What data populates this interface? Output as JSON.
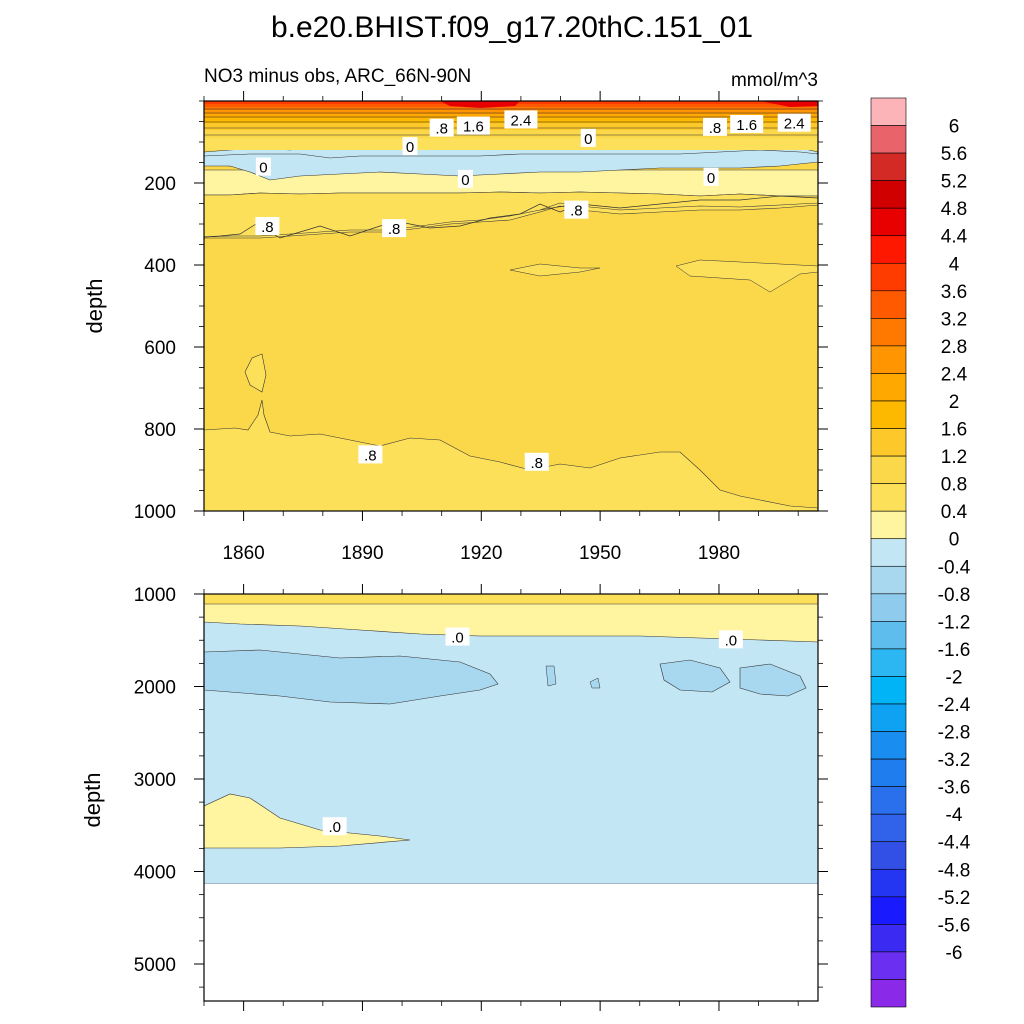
{
  "title": "b.e20.BHIST.f09_g17.20thC.151_01",
  "top_panel": {
    "subtitle_left": "NO3 minus obs, ARC_66N-90N",
    "subtitle_right": "mmol/m^3",
    "ylabel": "depth"
  },
  "bottom_panel": {
    "ylabel": "depth"
  },
  "colors": {
    "band_warm_low": "#fff5a0",
    "band_warm_mid": "#fde05a",
    "band_warm_high": "#fbd84a",
    "band_cold": "#c3e6f5",
    "band_cold_deep": "#a8d8ef"
  },
  "chart_data": [
    {
      "type": "heatmap",
      "name": "upper",
      "x_ticks": [
        1860,
        1890,
        1920,
        1950,
        1980
      ],
      "x_tick_labels": [
        "1860",
        "1890",
        "1920",
        "1950",
        "1980"
      ],
      "xlim": [
        1850,
        2005
      ],
      "y_ticks": [
        200,
        400,
        600,
        800,
        1000
      ],
      "y_tick_labels": [
        "200",
        "400",
        "600",
        "800",
        "1000"
      ],
      "ylim": [
        0,
        1000
      ],
      "y_inverted": true,
      "contour_labels": [
        {
          "text": ".8",
          "x": 1910,
          "y": 65
        },
        {
          "text": "1.6",
          "x": 1918,
          "y": 60
        },
        {
          "text": "2.4",
          "x": 1930,
          "y": 45
        },
        {
          "text": "0",
          "x": 1947,
          "y": 90
        },
        {
          "text": "0",
          "x": 1902,
          "y": 110
        },
        {
          "text": ".8",
          "x": 1979,
          "y": 63
        },
        {
          "text": "1.6",
          "x": 1987,
          "y": 56
        },
        {
          "text": "2.4",
          "x": 1999,
          "y": 53
        },
        {
          "text": "0",
          "x": 1865,
          "y": 160
        },
        {
          "text": "0",
          "x": 1916,
          "y": 190
        },
        {
          "text": "0",
          "x": 1978,
          "y": 185
        },
        {
          "text": ".8",
          "x": 1866,
          "y": 305
        },
        {
          "text": ".8",
          "x": 1898,
          "y": 310
        },
        {
          "text": ".8",
          "x": 1944,
          "y": 265
        },
        {
          "text": ".8",
          "x": 1892,
          "y": 862
        },
        {
          "text": ".8",
          "x": 1934,
          "y": 880
        }
      ]
    },
    {
      "type": "heatmap",
      "name": "lower",
      "x_ticks": [
        1860,
        1890,
        1920,
        1950,
        1980
      ],
      "xlim": [
        1850,
        2005
      ],
      "y_ticks": [
        1000,
        2000,
        3000,
        4000,
        5000
      ],
      "y_tick_labels": [
        "1000",
        "2000",
        "3000",
        "4000",
        "5000"
      ],
      "ylim": [
        1000,
        5400
      ],
      "y_inverted": true,
      "contour_labels": [
        {
          "text": ".0",
          "x": 1914,
          "y": 1460
        },
        {
          "text": ".0",
          "x": 1983,
          "y": 1490
        },
        {
          "text": ".0",
          "x": 1883,
          "y": 3510
        }
      ]
    }
  ],
  "colorbar": {
    "labels": [
      "6",
      "5.6",
      "5.2",
      "4.8",
      "4.4",
      "4",
      "3.6",
      "3.2",
      "2.8",
      "2.4",
      "2",
      "1.6",
      "1.2",
      "0.8",
      "0.4",
      "0",
      "-0.4",
      "-0.8",
      "-1.2",
      "-1.6",
      "-2",
      "-2.4",
      "-2.8",
      "-3.2",
      "-3.6",
      "-4",
      "-4.4",
      "-4.8",
      "-5.2",
      "-5.6",
      "-6"
    ],
    "colors": [
      "#fdb4b8",
      "#e8646a",
      "#d42a26",
      "#d00000",
      "#e80000",
      "#ff1800",
      "#ff3c00",
      "#ff5a00",
      "#ff7800",
      "#ff9500",
      "#ffa800",
      "#fdb800",
      "#fcc82a",
      "#fbd84a",
      "#fde05a",
      "#fff5a0",
      "#c3e6f5",
      "#a8d8ef",
      "#8ecbec",
      "#5fbdee",
      "#2db7f2",
      "#00b4f5",
      "#0fa2f3",
      "#1a8ef0",
      "#207dee",
      "#2a6fec",
      "#3062ea",
      "#3350e6",
      "#2536f2",
      "#1a1aff",
      "#3a2af2",
      "#6a2ff0",
      "#8a2ae8"
    ]
  }
}
